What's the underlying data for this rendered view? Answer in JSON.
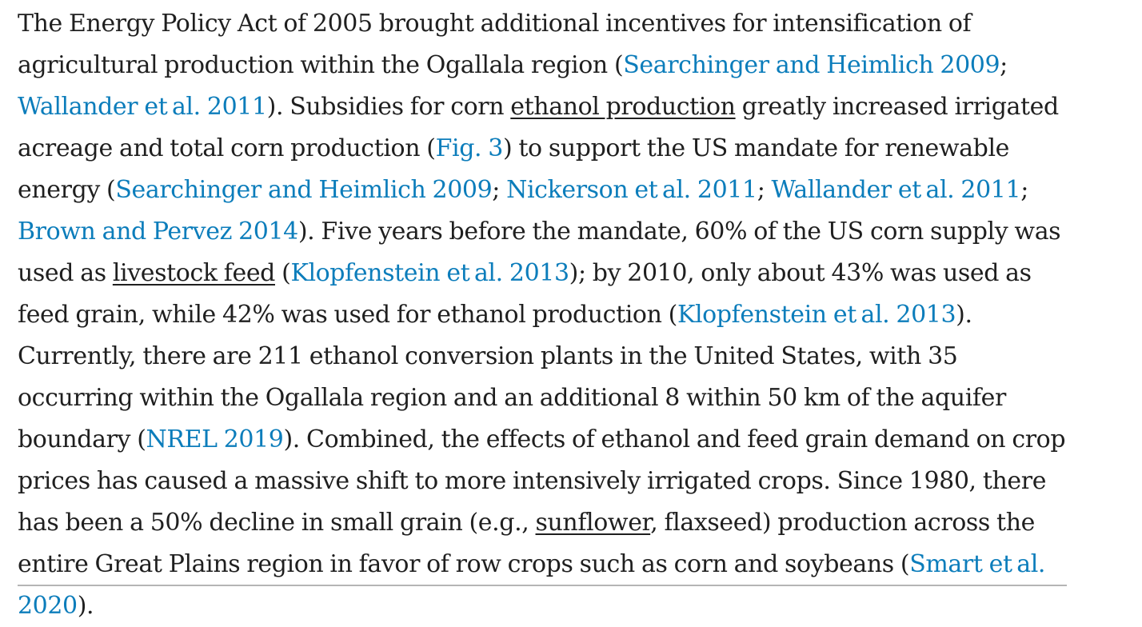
{
  "paragraph": {
    "t1": "The Energy Policy Act of 2005 brought additional incentives for intensification of agricultural production within the Ogallala region (",
    "r1": "Searchinger and Heimlich 2009",
    "t2": "; ",
    "r2": "Wallander et al. 2011",
    "t3": "). Subsidies for corn ",
    "k1": "ethanol production",
    "t4": " greatly increased irrigated acreage and total corn production (",
    "r3": "Fig. 3",
    "t5": ") to support the US mandate for renewable energy (",
    "r4": "Searchinger and Heimlich 2009",
    "t6": "; ",
    "r5": "Nickerson et al. 2011",
    "t7": "; ",
    "r6": "Wallander et al. 2011",
    "t8": "; ",
    "r7": "Brown and Pervez 2014",
    "t9": "). Five years before the mandate, 60% of the US corn supply was used as ",
    "k2": "livestock feed",
    "t10": " (",
    "r8": "Klopfenstein et al. 2013",
    "t11": "); by 2010, only about 43% was used as feed grain, while 42% was used for ethanol production (",
    "r9": "Klopfenstein et al. 2013",
    "t12": "). Currently, there are 211 ethanol conversion plants in the United States, with 35 occurring within the Ogallala region and an additional 8 within 50 km of the aquifer boundary (",
    "r10": "NREL 2019",
    "t13": "). Combined, the effects of ethanol and feed grain demand on crop prices has caused a massive shift to more intensively irrigated crops. Since 1980, there has been a 50% decline in small grain (e.g., ",
    "k3": "sunflower",
    "t14": ", flaxseed) production across the entire Great Plains region in favor of row crops such as corn and soybeans (",
    "r11": "Smart et al. 2020",
    "t15": ")."
  },
  "colors": {
    "text": "#1f1f1f",
    "link": "#0c7dbb",
    "divider": "#b5b5b5"
  }
}
